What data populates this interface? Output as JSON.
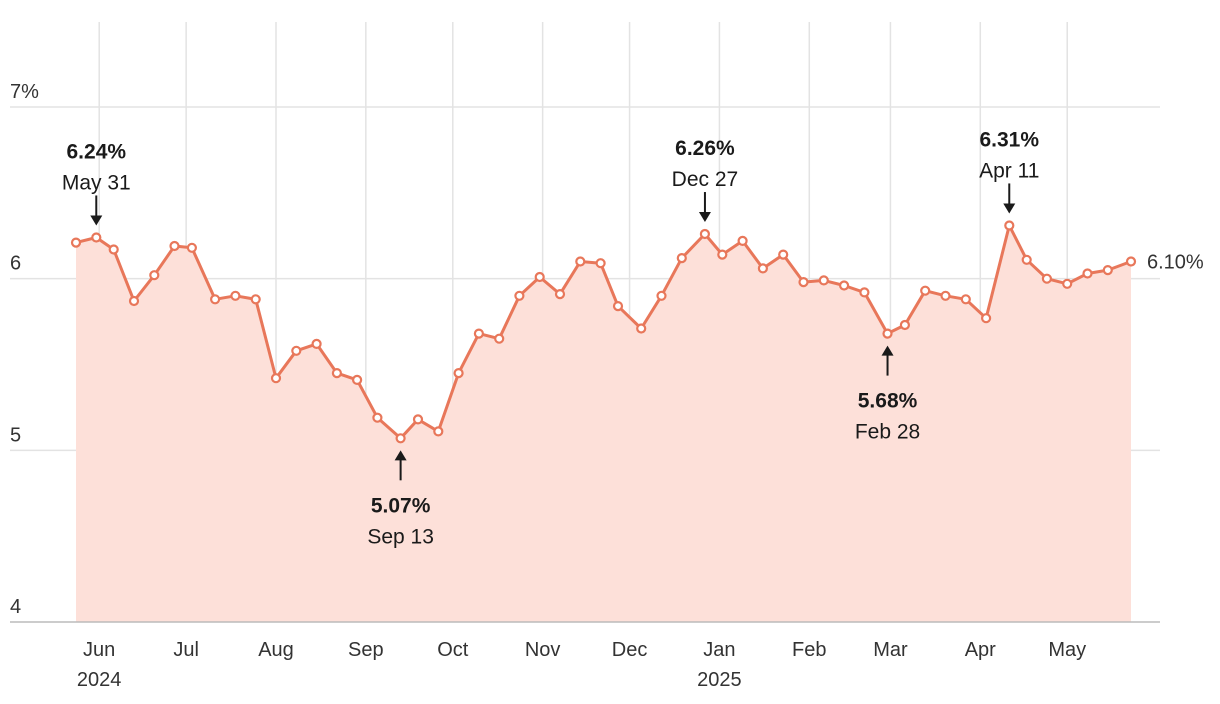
{
  "chart_data": {
    "type": "area",
    "title": "",
    "xlabel": "",
    "ylabel": "",
    "ylim": [
      4,
      7.3
    ],
    "xlim": [
      "2024-05-24",
      "2025-05-23"
    ],
    "y_ticks": [
      {
        "value": 7,
        "label": "7%"
      },
      {
        "value": 6,
        "label": "6"
      },
      {
        "value": 5,
        "label": "5"
      },
      {
        "value": 4,
        "label": "4"
      }
    ],
    "x_ticks": [
      {
        "date": "2024-06-01",
        "label": "Jun",
        "year": "2024"
      },
      {
        "date": "2024-07-01",
        "label": "Jul"
      },
      {
        "date": "2024-08-01",
        "label": "Aug"
      },
      {
        "date": "2024-09-01",
        "label": "Sep"
      },
      {
        "date": "2024-10-01",
        "label": "Oct"
      },
      {
        "date": "2024-11-01",
        "label": "Nov"
      },
      {
        "date": "2024-12-01",
        "label": "Dec"
      },
      {
        "date": "2025-01-01",
        "label": "Jan",
        "year": "2025"
      },
      {
        "date": "2025-02-01",
        "label": "Feb"
      },
      {
        "date": "2025-03-01",
        "label": "Mar"
      },
      {
        "date": "2025-04-01",
        "label": "Apr"
      },
      {
        "date": "2025-05-01",
        "label": "May"
      }
    ],
    "series": [
      {
        "x": [
          "2024-05-24",
          "2024-05-31",
          "2024-06-06",
          "2024-06-13",
          "2024-06-20",
          "2024-06-27",
          "2024-07-03",
          "2024-07-11",
          "2024-07-18",
          "2024-07-25",
          "2024-08-01",
          "2024-08-08",
          "2024-08-15",
          "2024-08-22",
          "2024-08-29",
          "2024-09-05",
          "2024-09-13",
          "2024-09-19",
          "2024-09-26",
          "2024-10-03",
          "2024-10-10",
          "2024-10-17",
          "2024-10-24",
          "2024-10-31",
          "2024-11-07",
          "2024-11-14",
          "2024-11-21",
          "2024-11-27",
          "2024-12-05",
          "2024-12-12",
          "2024-12-19",
          "2024-12-27",
          "2025-01-02",
          "2025-01-09",
          "2025-01-16",
          "2025-01-23",
          "2025-01-30",
          "2025-02-06",
          "2025-02-13",
          "2025-02-20",
          "2025-02-28",
          "2025-03-06",
          "2025-03-13",
          "2025-03-20",
          "2025-03-27",
          "2025-04-03",
          "2025-04-11",
          "2025-04-17",
          "2025-04-24",
          "2025-05-01",
          "2025-05-08",
          "2025-05-15",
          "2025-05-23"
        ],
        "y": [
          6.21,
          6.24,
          6.17,
          5.87,
          6.02,
          6.19,
          6.18,
          5.88,
          5.9,
          5.88,
          5.42,
          5.58,
          5.62,
          5.45,
          5.41,
          5.19,
          5.07,
          5.18,
          5.11,
          5.45,
          5.68,
          5.65,
          5.9,
          6.01,
          5.91,
          6.1,
          6.09,
          5.84,
          5.71,
          5.9,
          6.12,
          6.26,
          6.14,
          6.22,
          6.06,
          6.14,
          5.98,
          5.99,
          5.96,
          5.92,
          5.68,
          5.73,
          5.93,
          5.9,
          5.88,
          5.77,
          6.31,
          6.11,
          6.0,
          5.97,
          6.03,
          6.05,
          6.1
        ]
      }
    ],
    "annotations": [
      {
        "value": "6.24%",
        "date": "May 31",
        "index": 1,
        "position": "above"
      },
      {
        "value": "5.07%",
        "date": "Sep 13",
        "index": 16,
        "position": "below"
      },
      {
        "value": "6.26%",
        "date": "Dec 27",
        "index": 31,
        "position": "above"
      },
      {
        "value": "5.68%",
        "date": "Feb 28",
        "index": 40,
        "position": "below"
      },
      {
        "value": "6.31%",
        "date": "Apr 11",
        "index": 46,
        "position": "above"
      }
    ],
    "end_label": "6.10%",
    "grid": true,
    "colors": {
      "line": "#e8775a",
      "fill": "#fde0d9",
      "grid": "#e3e3e3",
      "axis": "#cccccc",
      "text": "#333333"
    }
  }
}
